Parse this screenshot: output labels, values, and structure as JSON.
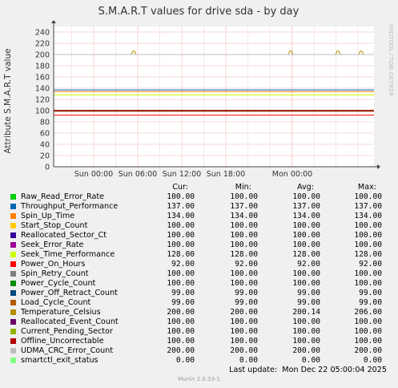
{
  "chart_data": {
    "type": "line",
    "title": "S.M.A.R.T values for drive sda - by day",
    "ylabel": "Attribute S.M.A.R.T value",
    "xlabel": "",
    "ylim": [
      0,
      250
    ],
    "yticks": [
      0,
      20,
      40,
      60,
      80,
      100,
      120,
      140,
      160,
      180,
      200,
      220,
      240
    ],
    "x_ticks": [
      "Sun 00:00",
      "Sun 06:00",
      "Sun 12:00",
      "Sun 18:00",
      "Mon 00:00"
    ],
    "grid": true,
    "watermark": "RRDTOOL / TOBI OETIKER",
    "columns": [
      "Cur:",
      "Min:",
      "Avg:",
      "Max:"
    ],
    "series": [
      {
        "name": "Raw_Read_Error_Rate",
        "color": "#00cc00",
        "cur": "100.00",
        "min": "100.00",
        "avg": "100.00",
        "max": "100.00"
      },
      {
        "name": "Throughput_Performance",
        "color": "#0066b3",
        "cur": "137.00",
        "min": "137.00",
        "avg": "137.00",
        "max": "137.00"
      },
      {
        "name": "Spin_Up_Time",
        "color": "#ff8000",
        "cur": "134.00",
        "min": "134.00",
        "avg": "134.00",
        "max": "134.00"
      },
      {
        "name": "Start_Stop_Count",
        "color": "#ffcc00",
        "cur": "100.00",
        "min": "100.00",
        "avg": "100.00",
        "max": "100.00"
      },
      {
        "name": "Reallocated_Sector_Ct",
        "color": "#330099",
        "cur": "100.00",
        "min": "100.00",
        "avg": "100.00",
        "max": "100.00"
      },
      {
        "name": "Seek_Error_Rate",
        "color": "#990099",
        "cur": "100.00",
        "min": "100.00",
        "avg": "100.00",
        "max": "100.00"
      },
      {
        "name": "Seek_Time_Performance",
        "color": "#ccff00",
        "cur": "128.00",
        "min": "128.00",
        "avg": "128.00",
        "max": "128.00"
      },
      {
        "name": "Power_On_Hours",
        "color": "#ff0000",
        "cur": "92.00",
        "min": "92.00",
        "avg": "92.00",
        "max": "92.00"
      },
      {
        "name": "Spin_Retry_Count",
        "color": "#808080",
        "cur": "100.00",
        "min": "100.00",
        "avg": "100.00",
        "max": "100.00"
      },
      {
        "name": "Power_Cycle_Count",
        "color": "#008f00",
        "cur": "100.00",
        "min": "100.00",
        "avg": "100.00",
        "max": "100.00"
      },
      {
        "name": "Power_Off_Retract_Count",
        "color": "#00487d",
        "cur": "99.00",
        "min": "99.00",
        "avg": "99.00",
        "max": "99.00"
      },
      {
        "name": "Load_Cycle_Count",
        "color": "#b35a00",
        "cur": "99.00",
        "min": "99.00",
        "avg": "99.00",
        "max": "99.00"
      },
      {
        "name": "Temperature_Celsius",
        "color": "#b38f00",
        "cur": "200.00",
        "min": "200.00",
        "avg": "200.14",
        "max": "206.00"
      },
      {
        "name": "Reallocated_Event_Count",
        "color": "#6b006b",
        "cur": "100.00",
        "min": "100.00",
        "avg": "100.00",
        "max": "100.00"
      },
      {
        "name": "Current_Pending_Sector",
        "color": "#8fb300",
        "cur": "100.00",
        "min": "100.00",
        "avg": "100.00",
        "max": "100.00"
      },
      {
        "name": "Offline_Uncorrectable",
        "color": "#b30000",
        "cur": "100.00",
        "min": "100.00",
        "avg": "100.00",
        "max": "100.00"
      },
      {
        "name": "UDMA_CRC_Error_Count",
        "color": "#bebebe",
        "cur": "200.00",
        "min": "200.00",
        "avg": "200.00",
        "max": "200.00"
      },
      {
        "name": "smartctl_exit_status",
        "color": "#80ff80",
        "cur": "0.00",
        "min": "0.00",
        "avg": "0.00",
        "max": "0.00"
      }
    ],
    "temperature_spikes": [
      {
        "x": "Sun 05:30",
        "y": 206
      },
      {
        "x": "Sun 21:30",
        "y": 206
      },
      {
        "x": "Mon 02:30",
        "y": 206
      },
      {
        "x": "Mon 04:30",
        "y": 206
      }
    ],
    "last_update": "Last update:  Mon Dec 22 05:00:04 2025",
    "generator": "Munin 2.0.33-1"
  }
}
